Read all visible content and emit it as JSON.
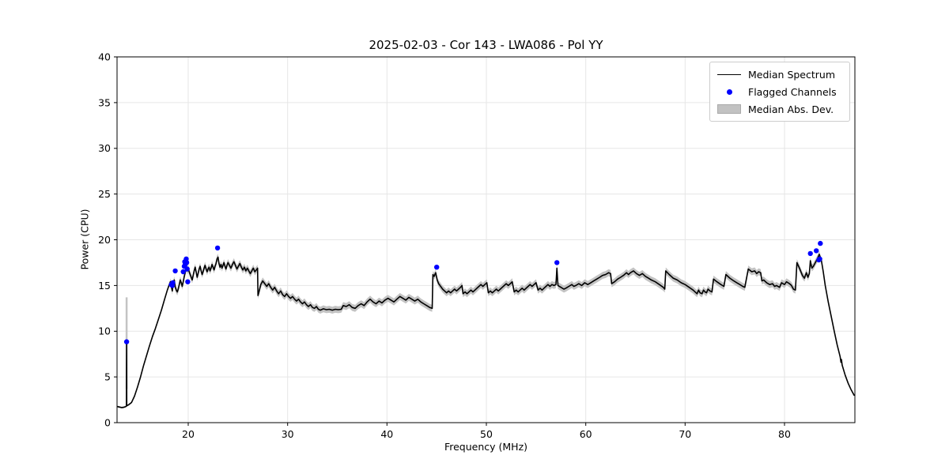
{
  "chart_data": {
    "type": "line",
    "title": "2025-02-03 - Cor 143 - LWA086 - Pol YY",
    "xlabel": "Frequency (MHz)",
    "ylabel": "Power (CPU)",
    "xlim": [
      12.84,
      87.08
    ],
    "ylim": [
      0,
      40
    ],
    "xticks": [
      20,
      30,
      40,
      50,
      60,
      70,
      80
    ],
    "yticks": [
      0,
      5,
      10,
      15,
      20,
      25,
      30,
      35,
      40
    ],
    "grid": true,
    "legend": {
      "position": "upper right",
      "items": [
        {
          "label": "Median Spectrum",
          "marker": "line",
          "color": "#000000"
        },
        {
          "label": "Flagged Channels",
          "marker": "dot",
          "color": "#0000ff"
        },
        {
          "label": "Median Abs. Dev.",
          "marker": "patch",
          "color": "#c2c2c2"
        }
      ]
    },
    "colors": {
      "median_line": "#000000",
      "flagged": "#0000ff",
      "mad_band": "#c3c3c3",
      "grid": "#e6e6e6",
      "spine": "#000000",
      "tick_label": "#000000"
    },
    "mad_band": {
      "half_width_main": 0.38,
      "main_range": [
        18.2,
        83.6
      ],
      "half_width_outside": 0.1
    },
    "mad_spike": {
      "freq": 13.8,
      "from": 3.7,
      "to": 13.7
    },
    "series": [
      [
        12.9,
        1.75
      ],
      [
        13.1,
        1.7
      ],
      [
        13.3,
        1.65
      ],
      [
        13.5,
        1.68
      ],
      [
        13.7,
        1.75
      ],
      [
        13.78,
        1.8
      ],
      [
        13.8,
        8.7
      ],
      [
        13.82,
        1.85
      ],
      [
        14.0,
        1.95
      ],
      [
        14.3,
        2.2
      ],
      [
        14.6,
        2.9
      ],
      [
        14.9,
        3.9
      ],
      [
        15.2,
        5.0
      ],
      [
        15.5,
        6.2
      ],
      [
        15.8,
        7.3
      ],
      [
        16.1,
        8.4
      ],
      [
        16.4,
        9.4
      ],
      [
        16.7,
        10.3
      ],
      [
        17.0,
        11.3
      ],
      [
        17.3,
        12.3
      ],
      [
        17.6,
        13.4
      ],
      [
        17.9,
        14.5
      ],
      [
        18.1,
        15.1
      ],
      [
        18.2,
        15.4
      ],
      [
        18.3,
        14.9
      ],
      [
        18.4,
        14.4
      ],
      [
        18.5,
        15.2
      ],
      [
        18.6,
        15.6
      ],
      [
        18.7,
        14.8
      ],
      [
        18.8,
        14.5
      ],
      [
        18.9,
        14.3
      ],
      [
        19.0,
        14.6
      ],
      [
        19.1,
        15.1
      ],
      [
        19.2,
        15.6
      ],
      [
        19.3,
        15.3
      ],
      [
        19.4,
        14.9
      ],
      [
        19.5,
        15.4
      ],
      [
        19.6,
        16.0
      ],
      [
        19.7,
        16.4
      ],
      [
        19.8,
        17.0
      ],
      [
        19.9,
        16.6
      ],
      [
        20.0,
        16.9
      ],
      [
        20.1,
        16.5
      ],
      [
        20.2,
        16.2
      ],
      [
        20.3,
        15.9
      ],
      [
        20.4,
        15.6
      ],
      [
        20.5,
        16.1
      ],
      [
        20.6,
        16.6
      ],
      [
        20.7,
        17.0
      ],
      [
        20.8,
        16.5
      ],
      [
        20.9,
        15.9
      ],
      [
        21.0,
        16.3
      ],
      [
        21.1,
        16.8
      ],
      [
        21.2,
        17.1
      ],
      [
        21.3,
        16.6
      ],
      [
        21.4,
        16.2
      ],
      [
        21.5,
        16.5
      ],
      [
        21.6,
        16.9
      ],
      [
        21.7,
        17.2
      ],
      [
        21.8,
        16.8
      ],
      [
        21.9,
        16.5
      ],
      [
        22.0,
        16.8
      ],
      [
        22.1,
        17.0
      ],
      [
        22.2,
        16.6
      ],
      [
        22.3,
        16.9
      ],
      [
        22.4,
        17.3
      ],
      [
        22.5,
        17.0
      ],
      [
        22.6,
        16.7
      ],
      [
        22.7,
        17.1
      ],
      [
        22.8,
        17.4
      ],
      [
        22.9,
        17.9
      ],
      [
        23.0,
        18.1
      ],
      [
        23.1,
        17.4
      ],
      [
        23.2,
        17.0
      ],
      [
        23.3,
        17.3
      ],
      [
        23.4,
        16.9
      ],
      [
        23.5,
        17.2
      ],
      [
        23.6,
        17.5
      ],
      [
        23.7,
        17.1
      ],
      [
        23.8,
        16.8
      ],
      [
        23.9,
        17.2
      ],
      [
        24.0,
        17.5
      ],
      [
        24.15,
        17.2
      ],
      [
        24.3,
        16.9
      ],
      [
        24.45,
        17.3
      ],
      [
        24.6,
        17.6
      ],
      [
        24.75,
        17.2
      ],
      [
        24.9,
        16.8
      ],
      [
        25.05,
        17.1
      ],
      [
        25.2,
        17.4
      ],
      [
        25.35,
        17.0
      ],
      [
        25.5,
        16.7
      ],
      [
        25.65,
        17.0
      ],
      [
        25.8,
        16.6
      ],
      [
        25.95,
        16.9
      ],
      [
        26.1,
        16.6
      ],
      [
        26.25,
        16.3
      ],
      [
        26.4,
        16.6
      ],
      [
        26.55,
        16.9
      ],
      [
        26.7,
        16.5
      ],
      [
        26.85,
        16.7
      ],
      [
        26.98,
        16.9
      ],
      [
        27.02,
        13.9
      ],
      [
        27.15,
        14.4
      ],
      [
        27.3,
        15.1
      ],
      [
        27.5,
        15.5
      ],
      [
        27.7,
        15.2
      ],
      [
        27.9,
        14.9
      ],
      [
        28.1,
        15.2
      ],
      [
        28.3,
        14.8
      ],
      [
        28.5,
        14.5
      ],
      [
        28.7,
        14.8
      ],
      [
        28.9,
        14.4
      ],
      [
        29.1,
        14.1
      ],
      [
        29.3,
        14.4
      ],
      [
        29.5,
        14.0
      ],
      [
        29.7,
        13.8
      ],
      [
        29.9,
        14.1
      ],
      [
        30.1,
        13.8
      ],
      [
        30.3,
        13.6
      ],
      [
        30.5,
        13.8
      ],
      [
        30.7,
        13.5
      ],
      [
        30.9,
        13.3
      ],
      [
        31.1,
        13.5
      ],
      [
        31.3,
        13.2
      ],
      [
        31.5,
        13.0
      ],
      [
        31.7,
        13.2
      ],
      [
        31.9,
        12.9
      ],
      [
        32.1,
        12.7
      ],
      [
        32.3,
        12.9
      ],
      [
        32.5,
        12.6
      ],
      [
        32.7,
        12.5
      ],
      [
        32.9,
        12.7
      ],
      [
        33.1,
        12.4
      ],
      [
        33.3,
        12.3
      ],
      [
        33.6,
        12.45
      ],
      [
        33.9,
        12.35
      ],
      [
        34.2,
        12.4
      ],
      [
        34.5,
        12.3
      ],
      [
        34.8,
        12.4
      ],
      [
        35.1,
        12.35
      ],
      [
        35.4,
        12.4
      ],
      [
        35.6,
        12.8
      ],
      [
        35.9,
        12.7
      ],
      [
        36.2,
        12.9
      ],
      [
        36.5,
        12.6
      ],
      [
        36.8,
        12.5
      ],
      [
        37.1,
        12.8
      ],
      [
        37.4,
        13.0
      ],
      [
        37.7,
        12.8
      ],
      [
        38.0,
        13.2
      ],
      [
        38.3,
        13.5
      ],
      [
        38.6,
        13.2
      ],
      [
        38.9,
        13.0
      ],
      [
        39.2,
        13.3
      ],
      [
        39.5,
        13.1
      ],
      [
        39.8,
        13.4
      ],
      [
        40.1,
        13.6
      ],
      [
        40.4,
        13.4
      ],
      [
        40.7,
        13.2
      ],
      [
        41.0,
        13.5
      ],
      [
        41.3,
        13.8
      ],
      [
        41.6,
        13.6
      ],
      [
        41.9,
        13.4
      ],
      [
        42.2,
        13.7
      ],
      [
        42.5,
        13.5
      ],
      [
        42.8,
        13.3
      ],
      [
        43.1,
        13.5
      ],
      [
        43.4,
        13.2
      ],
      [
        43.7,
        13.0
      ],
      [
        44.0,
        12.8
      ],
      [
        44.3,
        12.6
      ],
      [
        44.55,
        12.5
      ],
      [
        44.62,
        16.2
      ],
      [
        44.75,
        16.0
      ],
      [
        44.9,
        16.4
      ],
      [
        45.05,
        15.6
      ],
      [
        45.2,
        15.2
      ],
      [
        45.4,
        14.9
      ],
      [
        45.6,
        14.6
      ],
      [
        45.8,
        14.4
      ],
      [
        46.0,
        14.2
      ],
      [
        46.2,
        14.4
      ],
      [
        46.4,
        14.2
      ],
      [
        46.6,
        14.4
      ],
      [
        46.8,
        14.6
      ],
      [
        47.0,
        14.4
      ],
      [
        47.2,
        14.6
      ],
      [
        47.4,
        14.8
      ],
      [
        47.55,
        15.0
      ],
      [
        47.65,
        14.1
      ],
      [
        47.85,
        14.3
      ],
      [
        48.05,
        14.1
      ],
      [
        48.25,
        14.3
      ],
      [
        48.45,
        14.5
      ],
      [
        48.65,
        14.3
      ],
      [
        48.85,
        14.5
      ],
      [
        49.05,
        14.7
      ],
      [
        49.25,
        14.9
      ],
      [
        49.45,
        15.1
      ],
      [
        49.65,
        14.9
      ],
      [
        49.85,
        15.1
      ],
      [
        50.05,
        15.3
      ],
      [
        50.2,
        14.2
      ],
      [
        50.4,
        14.4
      ],
      [
        50.6,
        14.2
      ],
      [
        50.8,
        14.4
      ],
      [
        51.0,
        14.6
      ],
      [
        51.2,
        14.4
      ],
      [
        51.4,
        14.6
      ],
      [
        51.6,
        14.8
      ],
      [
        51.8,
        15.0
      ],
      [
        52.0,
        15.2
      ],
      [
        52.2,
        15.0
      ],
      [
        52.4,
        15.2
      ],
      [
        52.6,
        15.4
      ],
      [
        52.8,
        14.3
      ],
      [
        53.0,
        14.5
      ],
      [
        53.2,
        14.3
      ],
      [
        53.4,
        14.5
      ],
      [
        53.6,
        14.7
      ],
      [
        53.8,
        14.5
      ],
      [
        54.0,
        14.7
      ],
      [
        54.2,
        14.9
      ],
      [
        54.4,
        15.1
      ],
      [
        54.6,
        14.9
      ],
      [
        54.8,
        15.1
      ],
      [
        55.0,
        15.3
      ],
      [
        55.2,
        14.5
      ],
      [
        55.4,
        14.7
      ],
      [
        55.6,
        14.5
      ],
      [
        55.8,
        14.7
      ],
      [
        56.0,
        14.9
      ],
      [
        56.2,
        15.1
      ],
      [
        56.4,
        14.9
      ],
      [
        56.6,
        15.1
      ],
      [
        56.8,
        15.0
      ],
      [
        57.0,
        15.1
      ],
      [
        57.1,
        16.9
      ],
      [
        57.2,
        15.0
      ],
      [
        57.5,
        14.8
      ],
      [
        57.8,
        14.6
      ],
      [
        58.0,
        14.7
      ],
      [
        58.3,
        14.9
      ],
      [
        58.6,
        15.1
      ],
      [
        58.8,
        14.9
      ],
      [
        59.0,
        15.0
      ],
      [
        59.3,
        15.2
      ],
      [
        59.6,
        15.0
      ],
      [
        59.9,
        15.3
      ],
      [
        60.2,
        15.1
      ],
      [
        60.5,
        15.3
      ],
      [
        60.8,
        15.5
      ],
      [
        61.1,
        15.7
      ],
      [
        61.4,
        15.9
      ],
      [
        61.7,
        16.1
      ],
      [
        62.0,
        16.2
      ],
      [
        62.3,
        16.4
      ],
      [
        62.5,
        16.3
      ],
      [
        62.6,
        15.2
      ],
      [
        62.9,
        15.4
      ],
      [
        63.2,
        15.7
      ],
      [
        63.5,
        15.9
      ],
      [
        63.8,
        16.1
      ],
      [
        64.1,
        16.4
      ],
      [
        64.3,
        16.2
      ],
      [
        64.5,
        16.4
      ],
      [
        64.8,
        16.6
      ],
      [
        65.1,
        16.3
      ],
      [
        65.4,
        16.1
      ],
      [
        65.7,
        16.3
      ],
      [
        66.0,
        16.0
      ],
      [
        66.3,
        15.8
      ],
      [
        66.6,
        15.6
      ],
      [
        67.0,
        15.4
      ],
      [
        67.4,
        15.1
      ],
      [
        67.8,
        14.8
      ],
      [
        67.95,
        14.6
      ],
      [
        68.05,
        16.6
      ],
      [
        68.4,
        16.2
      ],
      [
        68.8,
        15.8
      ],
      [
        69.2,
        15.6
      ],
      [
        69.6,
        15.3
      ],
      [
        70.0,
        15.1
      ],
      [
        70.4,
        14.8
      ],
      [
        70.8,
        14.5
      ],
      [
        71.2,
        14.1
      ],
      [
        71.35,
        14.5
      ],
      [
        71.5,
        14.2
      ],
      [
        71.7,
        14.1
      ],
      [
        71.85,
        14.5
      ],
      [
        72.0,
        14.3
      ],
      [
        72.15,
        14.2
      ],
      [
        72.3,
        14.6
      ],
      [
        72.5,
        14.4
      ],
      [
        72.7,
        14.3
      ],
      [
        72.85,
        15.7
      ],
      [
        73.2,
        15.4
      ],
      [
        73.6,
        15.1
      ],
      [
        73.9,
        14.9
      ],
      [
        74.1,
        16.2
      ],
      [
        74.5,
        15.8
      ],
      [
        74.9,
        15.5
      ],
      [
        75.2,
        15.3
      ],
      [
        75.5,
        15.1
      ],
      [
        75.8,
        14.9
      ],
      [
        76.0,
        14.8
      ],
      [
        76.35,
        16.8
      ],
      [
        76.7,
        16.5
      ],
      [
        77.0,
        16.6
      ],
      [
        77.2,
        16.3
      ],
      [
        77.4,
        16.5
      ],
      [
        77.6,
        16.4
      ],
      [
        77.72,
        15.5
      ],
      [
        77.9,
        15.6
      ],
      [
        78.2,
        15.3
      ],
      [
        78.5,
        15.1
      ],
      [
        78.8,
        15.2
      ],
      [
        79.0,
        14.9
      ],
      [
        79.2,
        15.0
      ],
      [
        79.5,
        14.8
      ],
      [
        79.7,
        15.3
      ],
      [
        80.0,
        15.1
      ],
      [
        80.2,
        15.4
      ],
      [
        80.5,
        15.2
      ],
      [
        80.7,
        15.0
      ],
      [
        80.9,
        14.6
      ],
      [
        81.1,
        14.5
      ],
      [
        81.25,
        17.5
      ],
      [
        81.5,
        16.9
      ],
      [
        81.8,
        16.1
      ],
      [
        82.0,
        15.8
      ],
      [
        82.2,
        16.4
      ],
      [
        82.35,
        15.9
      ],
      [
        82.5,
        16.3
      ],
      [
        82.6,
        17.7
      ],
      [
        82.75,
        16.9
      ],
      [
        82.9,
        17.1
      ],
      [
        83.1,
        17.5
      ],
      [
        83.3,
        17.9
      ],
      [
        83.5,
        18.4
      ],
      [
        83.7,
        17.8
      ],
      [
        83.9,
        16.5
      ],
      [
        84.1,
        15.0
      ],
      [
        84.4,
        13.2
      ],
      [
        84.7,
        11.6
      ],
      [
        85.0,
        10.0
      ],
      [
        85.3,
        8.5
      ],
      [
        85.6,
        7.2
      ],
      [
        85.68,
        6.6
      ],
      [
        85.73,
        6.9
      ],
      [
        85.8,
        6.3
      ],
      [
        86.1,
        5.2
      ],
      [
        86.4,
        4.3
      ],
      [
        86.7,
        3.6
      ],
      [
        87.0,
        3.0
      ]
    ],
    "flagged_channels": [
      [
        13.8,
        8.85
      ],
      [
        18.3,
        15.1
      ],
      [
        18.4,
        15.0
      ],
      [
        18.45,
        15.3
      ],
      [
        18.7,
        16.6
      ],
      [
        19.5,
        16.5
      ],
      [
        19.6,
        17.1
      ],
      [
        19.65,
        17.6
      ],
      [
        19.7,
        17.3
      ],
      [
        19.8,
        17.9
      ],
      [
        19.85,
        17.5
      ],
      [
        19.9,
        16.8
      ],
      [
        19.95,
        15.4
      ],
      [
        22.95,
        19.1
      ],
      [
        45.0,
        17.0
      ],
      [
        57.1,
        17.5
      ],
      [
        82.6,
        18.5
      ],
      [
        83.2,
        18.8
      ],
      [
        83.45,
        17.8
      ],
      [
        83.55,
        17.9
      ],
      [
        83.6,
        19.6
      ]
    ]
  }
}
